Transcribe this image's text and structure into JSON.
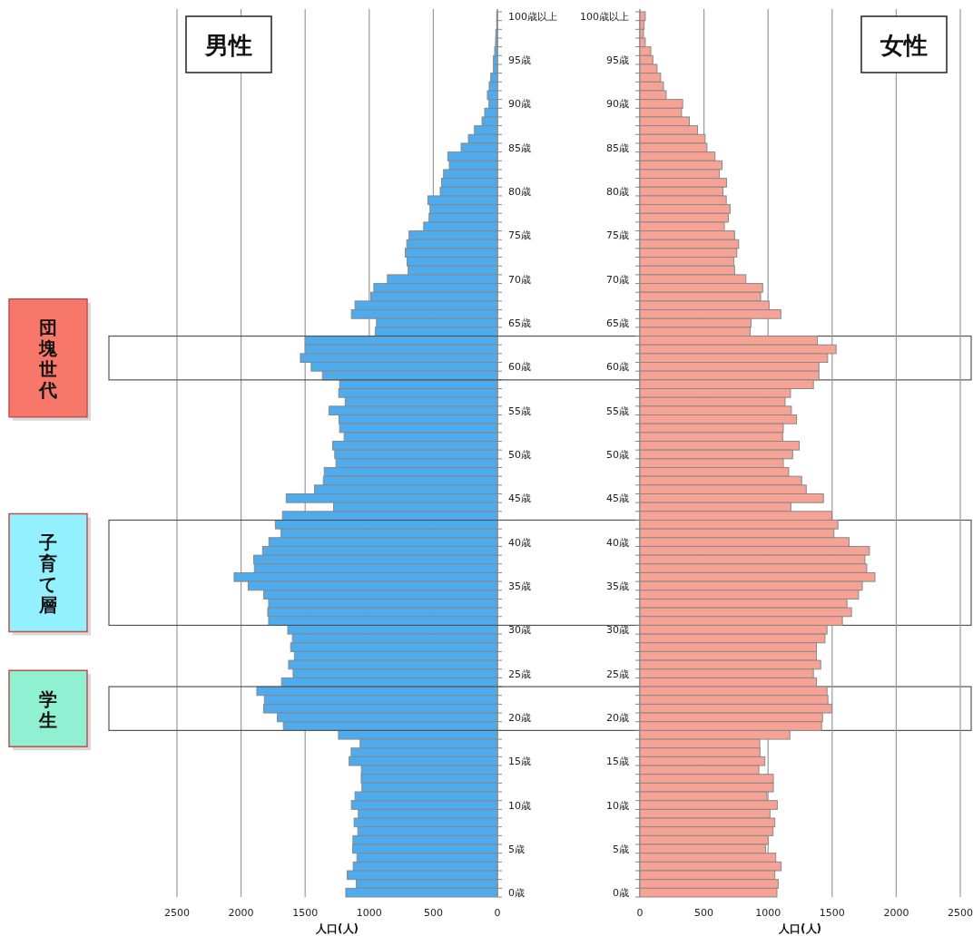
{
  "chart_data": [
    {
      "type": "bar",
      "orientation": "horizontal",
      "title": "男性",
      "xlabel": "人口(人)",
      "categories": [
        "100歳以上",
        null,
        null,
        null,
        null,
        "95歳",
        null,
        null,
        null,
        null,
        "90歳",
        null,
        null,
        null,
        null,
        "85歳",
        null,
        null,
        null,
        null,
        "80歳",
        null,
        null,
        null,
        null,
        "75歳",
        null,
        null,
        null,
        null,
        "70歳",
        null,
        null,
        null,
        null,
        "65歳",
        null,
        null,
        null,
        null,
        "60歳",
        null,
        null,
        null,
        null,
        "55歳",
        null,
        null,
        null,
        null,
        "50歳",
        null,
        null,
        null,
        null,
        "45歳",
        null,
        null,
        null,
        null,
        "40歳",
        null,
        null,
        null,
        null,
        "35歳",
        null,
        null,
        null,
        null,
        "30歳",
        null,
        null,
        null,
        null,
        "25歳",
        null,
        null,
        null,
        null,
        "20歳",
        null,
        null,
        null,
        null,
        "15歳",
        null,
        null,
        null,
        null,
        "10歳",
        null,
        null,
        null,
        null,
        "5歳",
        null,
        null,
        null,
        null,
        "0歳"
      ],
      "values": [
        5,
        5,
        12,
        14,
        21,
        31,
        31,
        52,
        64,
        78,
        66,
        99,
        120,
        179,
        226,
        283,
        387,
        375,
        420,
        436,
        446,
        542,
        526,
        533,
        575,
        689,
        707,
        719,
        705,
        696,
        858,
        964,
        988,
        1111,
        1139,
        943,
        953,
        1500,
        1500,
        1537,
        1453,
        1365,
        1231,
        1238,
        1188,
        1313,
        1236,
        1231,
        1196,
        1285,
        1269,
        1259,
        1351,
        1358,
        1427,
        1648,
        1278,
        1677,
        1733,
        1688,
        1783,
        1832,
        1901,
        1896,
        2054,
        1945,
        1823,
        1785,
        1792,
        1785,
        1636,
        1599,
        1613,
        1584,
        1629,
        1594,
        1684,
        1877,
        1818,
        1823,
        1717,
        1670,
        1240,
        1071,
        1141,
        1157,
        1061,
        1063,
        1057,
        1111,
        1139,
        1085,
        1118,
        1089,
        1127,
        1129,
        1096,
        1125,
        1172,
        1101,
        1183
      ],
      "color": "#4eabee",
      "xlim": [
        2500,
        0
      ],
      "xticks": [
        2500,
        2000,
        1500,
        1000,
        500,
        0
      ],
      "grid": "x",
      "annotations": [
        "団塊世代",
        "子育て層",
        "学生"
      ]
    },
    {
      "type": "bar",
      "orientation": "horizontal",
      "title": "女性",
      "xlabel": "人口(人)",
      "categories": [
        "100歳以上",
        null,
        null,
        null,
        null,
        "95歳",
        null,
        null,
        null,
        null,
        "90歳",
        null,
        null,
        null,
        null,
        "85歳",
        null,
        null,
        null,
        null,
        "80歳",
        null,
        null,
        null,
        null,
        "75歳",
        null,
        null,
        null,
        null,
        "70歳",
        null,
        null,
        null,
        null,
        "65歳",
        null,
        null,
        null,
        null,
        "60歳",
        null,
        null,
        null,
        null,
        "55歳",
        null,
        null,
        null,
        null,
        "50歳",
        null,
        null,
        null,
        null,
        "45歳",
        null,
        null,
        null,
        null,
        "40歳",
        null,
        null,
        null,
        null,
        "35歳",
        null,
        null,
        null,
        null,
        "30歳",
        null,
        null,
        null,
        null,
        "25歳",
        null,
        null,
        null,
        null,
        "20歳",
        null,
        null,
        null,
        null,
        "15歳",
        null,
        null,
        null,
        null,
        "10歳",
        null,
        null,
        null,
        null,
        "5歳",
        null,
        null,
        null,
        null,
        "0歳"
      ],
      "values": [
        42,
        33,
        28,
        42,
        85,
        101,
        134,
        162,
        184,
        205,
        334,
        325,
        386,
        450,
        509,
        523,
        586,
        641,
        619,
        676,
        648,
        674,
        704,
        690,
        659,
        739,
        770,
        756,
        732,
        739,
        827,
        958,
        942,
        1008,
        1100,
        867,
        860,
        1385,
        1531,
        1465,
        1397,
        1397,
        1354,
        1175,
        1133,
        1182,
        1222,
        1119,
        1114,
        1243,
        1192,
        1119,
        1161,
        1262,
        1298,
        1432,
        1178,
        1498,
        1545,
        1514,
        1632,
        1791,
        1756,
        1770,
        1834,
        1735,
        1706,
        1616,
        1651,
        1580,
        1460,
        1444,
        1378,
        1378,
        1411,
        1354,
        1378,
        1460,
        1467,
        1498,
        1425,
        1418,
        1170,
        935,
        937,
        975,
        928,
        1041,
        1041,
        991,
        1072,
        1015,
        1053,
        1039,
        1001,
        980,
        1060,
        1102,
        1053,
        1079,
        1069
      ],
      "color": "#f6a395",
      "xlim": [
        0,
        2500
      ],
      "xticks": [
        0,
        500,
        1000,
        1500,
        2000,
        2500
      ],
      "grid": "x"
    }
  ]
}
